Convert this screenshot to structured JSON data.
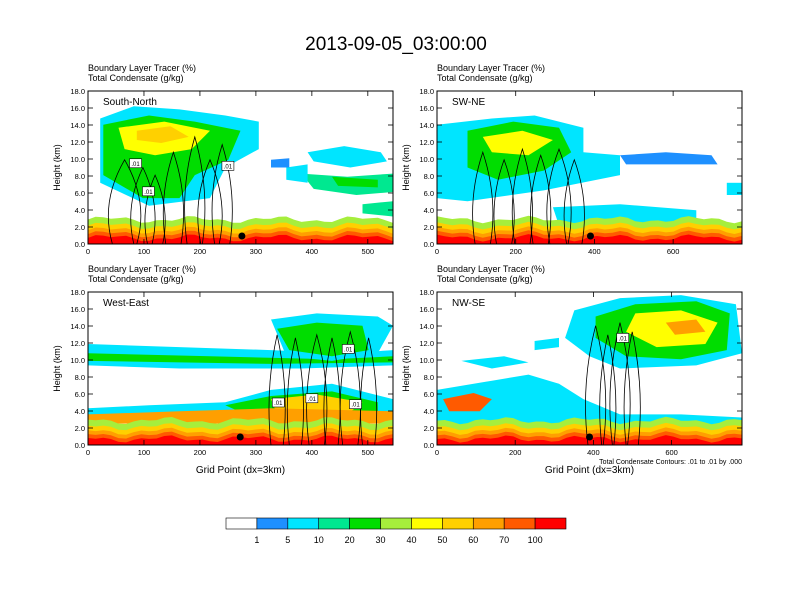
{
  "title": "2013-09-05_03:00:00",
  "chart_data": [
    {
      "type": "heatmap",
      "panel": "South-North",
      "title_left": "Boundary Layer Tracer   (%)",
      "subtitle_left": "Total Condensate   (g/kg)",
      "ylabel": "Height (km)",
      "xlabel": "",
      "xlim": [
        0,
        545
      ],
      "ylim": [
        0,
        18
      ],
      "xticks": [
        0,
        100,
        200,
        300,
        400,
        500
      ],
      "yticks": [
        "0.0",
        "2.0",
        "4.0",
        "6.0",
        "8.0",
        "10.0",
        "12.0",
        "14.0",
        "16.0",
        "18.0"
      ],
      "marker_x": 275,
      "contour_labels": [
        {
          "text": ".01",
          "x": 85,
          "y": 9.5
        },
        {
          "text": ".01",
          "x": 108,
          "y": 6.2
        },
        {
          "text": ".01",
          "x": 250,
          "y": 9.2
        }
      ]
    },
    {
      "type": "heatmap",
      "panel": "SW-NE",
      "title_left": "Boundary Layer Tracer   (%)",
      "subtitle_left": "Total Condensate   (g/kg)",
      "ylabel": "Height (km)",
      "xlabel": "",
      "xlim": [
        0,
        775
      ],
      "ylim": [
        0,
        18
      ],
      "xticks": [
        0,
        200,
        400,
        600
      ],
      "yticks": [
        "0.0",
        "2.0",
        "4.0",
        "6.0",
        "8.0",
        "10.0",
        "12.0",
        "14.0",
        "16.0",
        "18.0"
      ],
      "marker_x": 390,
      "contour_labels": []
    },
    {
      "type": "heatmap",
      "panel": "West-East",
      "title_left": "Boundary Layer Tracer   (%)",
      "subtitle_left": "Total Condensate   (g/kg)",
      "ylabel": "Height (km)",
      "xlabel": "Grid Point (dx=3km)",
      "xlim": [
        0,
        545
      ],
      "ylim": [
        0,
        18
      ],
      "xticks": [
        0,
        100,
        200,
        300,
        400,
        500
      ],
      "yticks": [
        "0.0",
        "2.0",
        "4.0",
        "6.0",
        "8.0",
        "10.0",
        "12.0",
        "14.0",
        "16.0",
        "18.0"
      ],
      "marker_x": 272,
      "contour_labels": [
        {
          "text": ".01",
          "x": 340,
          "y": 5.0
        },
        {
          "text": ".01",
          "x": 400,
          "y": 5.5
        },
        {
          "text": ".01",
          "x": 465,
          "y": 11.3
        },
        {
          "text": ".01",
          "x": 478,
          "y": 4.8
        }
      ]
    },
    {
      "type": "heatmap",
      "panel": "NW-SE",
      "title_left": "Boundary Layer Tracer   (%)",
      "subtitle_left": "Total Condensate   (g/kg)",
      "ylabel": "Height (km)",
      "xlabel": "Grid Point (dx=3km)",
      "xlim": [
        0,
        780
      ],
      "ylim": [
        0,
        18
      ],
      "xticks": [
        0,
        200,
        400,
        600
      ],
      "yticks": [
        "0.0",
        "2.0",
        "4.0",
        "6.0",
        "8.0",
        "10.0",
        "12.0",
        "14.0",
        "16.0",
        "18.0"
      ],
      "marker_x": 390,
      "contour_labels": [
        {
          "text": ".01",
          "x": 475,
          "y": 12.6
        }
      ],
      "footnote": "Total Condensate Contours: .01 to .01 by .000"
    }
  ],
  "colorbar": {
    "labels": [
      "1",
      "5",
      "10",
      "20",
      "30",
      "40",
      "50",
      "60",
      "70",
      "100"
    ],
    "colors": [
      "#ffffff",
      "#1e90ff",
      "#00e5ff",
      "#00e890",
      "#00dd00",
      "#a6ee3c",
      "#ffff00",
      "#ffd000",
      "#ff9f00",
      "#ff5a00",
      "#ff0000"
    ]
  }
}
